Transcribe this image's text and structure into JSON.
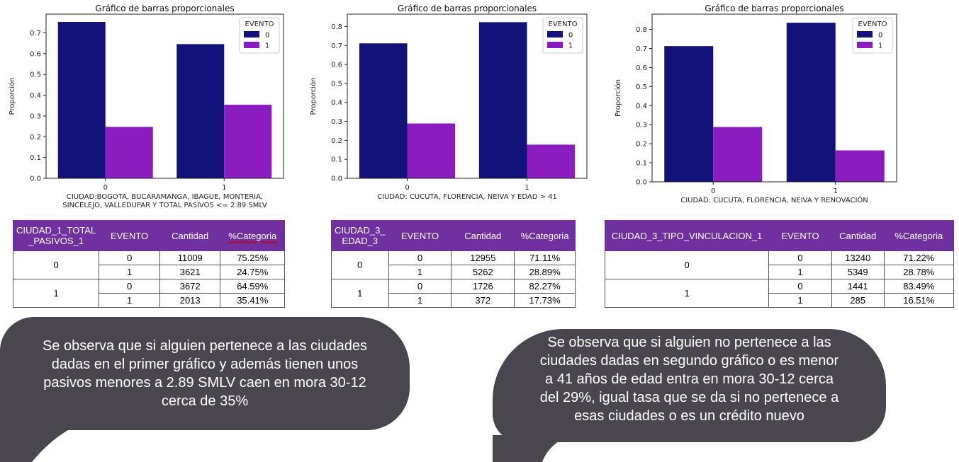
{
  "colors": {
    "evento0": "#12127a",
    "evento1": "#8a1cc0",
    "header": "#7030a0",
    "bubble": "#4a4650"
  },
  "chart_data": [
    {
      "type": "bar",
      "title": "Gráfico de barras proporcionales",
      "xlabel_lines": [
        "CIUDAD:BOGOTA, BUCARAMANGA, IBAGUE, MONTERIA,",
        "SINCELEJO, VALLEDUPAR Y TOTAL PASIVOS <= 2.89 SMLV"
      ],
      "ylabel": "Proporción",
      "categories": [
        "0",
        "1"
      ],
      "yticks": [
        "0.0",
        "0.1",
        "0.2",
        "0.3",
        "0.4",
        "0.5",
        "0.6",
        "0.7"
      ],
      "ylim": [
        0,
        0.79
      ],
      "legend_title": "EVENTO",
      "legend": "top-right",
      "series": [
        {
          "name": "0",
          "values": [
            0.7525,
            0.6459
          ]
        },
        {
          "name": "1",
          "values": [
            0.2475,
            0.3541
          ]
        }
      ]
    },
    {
      "type": "bar",
      "title": "Gráfico de barras proporcionales",
      "xlabel_lines": [
        "CIUDAD: CUCUTA, FLORENCIA, NEIVA Y EDAD > 41"
      ],
      "ylabel": "Proporción",
      "categories": [
        "0",
        "1"
      ],
      "yticks": [
        "0.0",
        "0.1",
        "0.2",
        "0.3",
        "0.4",
        "0.5",
        "0.6",
        "0.7",
        "0.8"
      ],
      "ylim": [
        0,
        0.865
      ],
      "legend_title": "EVENTO",
      "legend": "top-right",
      "series": [
        {
          "name": "0",
          "values": [
            0.7111,
            0.8227
          ]
        },
        {
          "name": "1",
          "values": [
            0.2889,
            0.1773
          ]
        }
      ]
    },
    {
      "type": "bar",
      "title": "Gráfico de barras proporcionales",
      "xlabel_lines": [
        "CIUDAD: CUCUTA, FLORENCIA, NEIVA Y RENOVACIÓN"
      ],
      "ylabel": "Proporción",
      "categories": [
        "0",
        "1"
      ],
      "yticks": [
        "0.0",
        "0.1",
        "0.2",
        "0.3",
        "0.4",
        "0.5",
        "0.6",
        "0.7",
        "0.8"
      ],
      "ylim": [
        0,
        0.88
      ],
      "legend_title": "EVENTO",
      "legend": "top-right",
      "series": [
        {
          "name": "0",
          "values": [
            0.7122,
            0.8349
          ]
        },
        {
          "name": "1",
          "values": [
            0.2878,
            0.1651
          ]
        }
      ]
    }
  ],
  "tables": [
    {
      "headers": [
        "CIUDAD_1_TOTAL\n_PASIVOS_1",
        "EVENTO",
        "Cantidad",
        "%Categoria"
      ],
      "groups": [
        {
          "label": "0",
          "rows": [
            [
              "0",
              "11009",
              "75.25%"
            ],
            [
              "1",
              "3621",
              "24.75%"
            ]
          ]
        },
        {
          "label": "1",
          "rows": [
            [
              "0",
              "3672",
              "64.59%"
            ],
            [
              "1",
              "2013",
              "35.41%"
            ]
          ]
        }
      ]
    },
    {
      "headers": [
        "CIUDAD_3_\nEDAD_3",
        "EVENTO",
        "Cantidad",
        "%Categoria"
      ],
      "groups": [
        {
          "label": "0",
          "rows": [
            [
              "0",
              "12955",
              "71.11%"
            ],
            [
              "1",
              "5262",
              "28.89%"
            ]
          ]
        },
        {
          "label": "1",
          "rows": [
            [
              "0",
              "1726",
              "82.27%"
            ],
            [
              "1",
              "372",
              "17.73%"
            ]
          ]
        }
      ]
    },
    {
      "headers": [
        "CIUDAD_3_TIPO_VINCULACION_1",
        "EVENTO",
        "Cantidad",
        "%Categoria"
      ],
      "groups": [
        {
          "label": "0",
          "rows": [
            [
              "0",
              "13240",
              "71.22%"
            ],
            [
              "1",
              "5349",
              "28.78%"
            ]
          ]
        },
        {
          "label": "1",
          "rows": [
            [
              "0",
              "1441",
              "83.49%"
            ],
            [
              "1",
              "285",
              "16.51%"
            ]
          ]
        }
      ]
    }
  ],
  "notes": [
    {
      "lines": [
        "Se observa que si alguien pertenece a las ciudades",
        "dadas en el primer gráfico y además tienen unos",
        "pasivos menores a 2.89 SMLV caen en mora 30-12",
        "cerca de 35%"
      ]
    },
    {
      "lines": [
        "Se observa que si alguien no pertenece a las",
        "ciudades dadas en segundo gráfico o es menor",
        "a 41 años de edad entra en mora 30-12 cerca",
        "del 29%, igual tasa que se da si no pertenece a",
        "esas ciudades o es un crédito nuevo"
      ]
    }
  ]
}
